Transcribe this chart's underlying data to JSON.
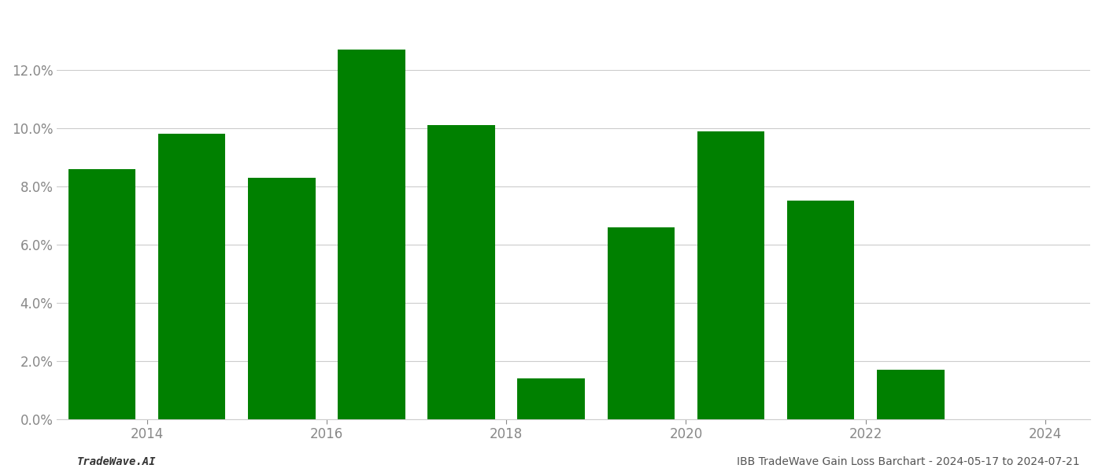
{
  "years": [
    2013.5,
    2014.5,
    2015.5,
    2016.5,
    2017.5,
    2018.5,
    2019.5,
    2020.5,
    2021.5,
    2022.5,
    2023.5
  ],
  "values": [
    0.086,
    0.098,
    0.083,
    0.127,
    0.101,
    0.014,
    0.066,
    0.099,
    0.075,
    0.017,
    0.0
  ],
  "bar_color": "#008000",
  "background_color": "#ffffff",
  "grid_color": "#cccccc",
  "ylabel_color": "#888888",
  "xlabel_color": "#888888",
  "ylim": [
    0,
    0.14
  ],
  "yticks": [
    0.0,
    0.02,
    0.04,
    0.06,
    0.08,
    0.1,
    0.12
  ],
  "xticks": [
    2014,
    2016,
    2018,
    2020,
    2022,
    2024
  ],
  "xlim": [
    2013.0,
    2024.5
  ],
  "footer_left": "TradeWave.AI",
  "footer_right": "IBB TradeWave Gain Loss Barchart - 2024-05-17 to 2024-07-21",
  "bar_width": 0.75,
  "tick_fontsize": 12,
  "footer_fontsize": 10
}
